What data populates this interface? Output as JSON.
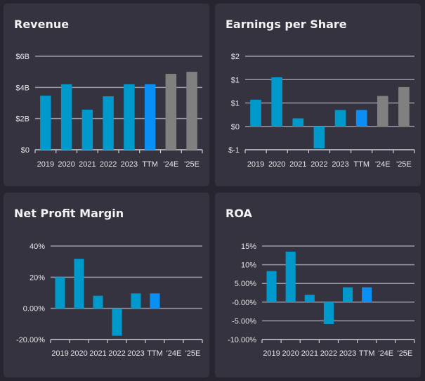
{
  "colors": {
    "historical": "#0099cc",
    "ttm": "#0a8ff5",
    "estimate": "#808080",
    "grid": "#9b99a3",
    "background": "#353340"
  },
  "chart_data": [
    {
      "type": "bar",
      "title": "Revenue",
      "categories": [
        "2019",
        "2020",
        "2021",
        "2022",
        "2023",
        "TTM",
        "'24E",
        "'25E"
      ],
      "values": [
        3.47,
        4.2,
        2.57,
        3.43,
        4.2,
        4.2,
        4.87,
        5.0
      ],
      "value_unit": "B USD",
      "ylim": [
        0,
        6
      ],
      "yticks": [
        0,
        2,
        4,
        6
      ],
      "ytick_labels": [
        "$0",
        "$2B",
        "$4B",
        "$6B"
      ],
      "grid": true
    },
    {
      "type": "bar",
      "title": "Earnings per Share",
      "categories": [
        "2019",
        "2020",
        "2021",
        "2022",
        "2023",
        "TTM",
        "'24E",
        "'25E"
      ],
      "values": [
        0.57,
        1.05,
        0.17,
        -0.47,
        0.35,
        0.35,
        0.65,
        0.84
      ],
      "ylim": [
        -0.5,
        1.5
      ],
      "yticks": [
        -0.5,
        0,
        0.5,
        1,
        1.5
      ],
      "ytick_labels": [
        "$-1",
        "$0",
        "$1",
        "$1",
        "$2"
      ],
      "grid": true
    },
    {
      "type": "bar",
      "title": "Net Profit Margin",
      "categories": [
        "2019",
        "2020",
        "2021",
        "2022",
        "2023",
        "TTM",
        "'24E",
        "'25E"
      ],
      "values": [
        20.0,
        31.8,
        8.1,
        -17.6,
        9.6,
        9.6,
        null,
        null
      ],
      "ylim": [
        -20,
        40
      ],
      "yticks": [
        -20,
        0,
        20,
        40
      ],
      "ytick_labels": [
        "-20.00%",
        "0.00%",
        "20%",
        "40%"
      ],
      "grid": true
    },
    {
      "type": "bar",
      "title": "ROA",
      "categories": [
        "2019",
        "2020",
        "2021",
        "2022",
        "2023",
        "TTM",
        "'24E",
        "'25E"
      ],
      "values": [
        8.3,
        13.5,
        1.95,
        -5.85,
        3.96,
        3.96,
        null,
        null
      ],
      "ylim": [
        -10,
        15
      ],
      "yticks": [
        -10,
        -5,
        0,
        5,
        10,
        15
      ],
      "ytick_labels": [
        "-10.00%",
        "-5.00%",
        "-0.00%",
        "5.00%",
        "10%",
        "15%"
      ],
      "grid": true
    }
  ]
}
